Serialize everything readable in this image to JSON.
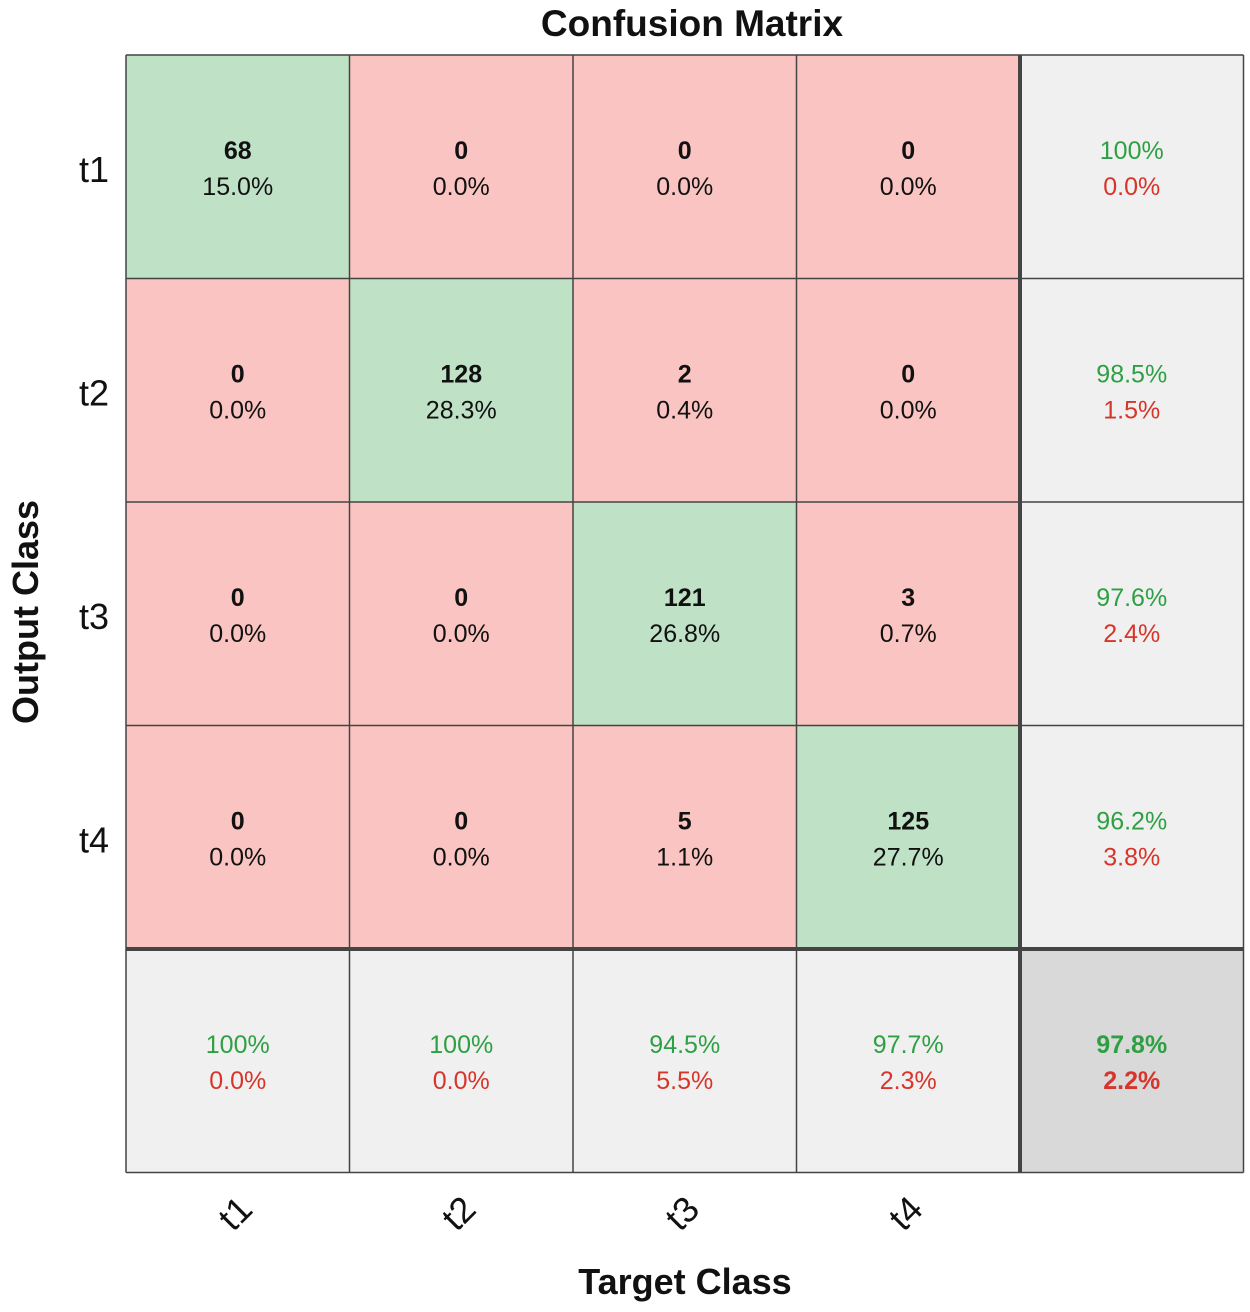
{
  "chart_data": {
    "type": "heatmap",
    "title": "Confusion Matrix",
    "xlabel": "Target Class",
    "ylabel": "Output Class",
    "row_labels": [
      "t1",
      "t2",
      "t3",
      "t4"
    ],
    "col_labels": [
      "t1",
      "t2",
      "t3",
      "t4"
    ],
    "counts": [
      [
        68,
        0,
        0,
        0
      ],
      [
        0,
        128,
        2,
        0
      ],
      [
        0,
        0,
        121,
        3
      ],
      [
        0,
        0,
        5,
        125
      ]
    ],
    "percents": [
      [
        "15.0%",
        "0.0%",
        "0.0%",
        "0.0%"
      ],
      [
        "0.0%",
        "28.3%",
        "0.4%",
        "0.0%"
      ],
      [
        "0.0%",
        "0.0%",
        "26.8%",
        "0.7%"
      ],
      [
        "0.0%",
        "0.0%",
        "1.1%",
        "27.7%"
      ]
    ],
    "row_summary": [
      {
        "correct": "100%",
        "error": "0.0%"
      },
      {
        "correct": "98.5%",
        "error": "1.5%"
      },
      {
        "correct": "97.6%",
        "error": "2.4%"
      },
      {
        "correct": "96.2%",
        "error": "3.8%"
      }
    ],
    "col_summary": [
      {
        "correct": "100%",
        "error": "0.0%"
      },
      {
        "correct": "100%",
        "error": "0.0%"
      },
      {
        "correct": "94.5%",
        "error": "5.5%"
      },
      {
        "correct": "97.7%",
        "error": "2.3%"
      }
    ],
    "overall": {
      "correct": "97.8%",
      "error": "2.2%"
    }
  },
  "colors": {
    "diagonal": "#bfe1c5",
    "off_diagonal": "#f9c4c1",
    "summary": "#f0f0f0",
    "overall": "#d9d9d9",
    "correct_text": "#2ea043",
    "error_text": "#d8352a",
    "grid": "#444444"
  }
}
